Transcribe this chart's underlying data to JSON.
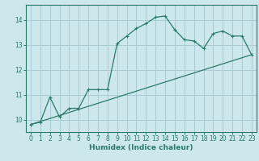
{
  "xlabel": "Humidex (Indice chaleur)",
  "background_color": "#cce8ec",
  "grid_color": "#aaccd4",
  "line_color": "#2a7a6a",
  "spine_color": "#2a7a6a",
  "xlim": [
    -0.5,
    23.5
  ],
  "ylim": [
    9.5,
    14.6
  ],
  "xticks": [
    0,
    1,
    2,
    3,
    4,
    5,
    6,
    7,
    8,
    9,
    10,
    11,
    12,
    13,
    14,
    15,
    16,
    17,
    18,
    19,
    20,
    21,
    22,
    23
  ],
  "yticks": [
    10,
    11,
    12,
    13,
    14
  ],
  "series1_x": [
    0,
    1,
    2,
    3,
    4,
    5,
    6,
    7,
    8,
    9,
    10,
    11,
    12,
    13,
    14,
    15,
    16,
    17,
    18,
    19,
    20,
    21,
    22,
    23
  ],
  "series1_y": [
    9.8,
    9.9,
    10.9,
    10.1,
    10.45,
    10.45,
    11.2,
    11.2,
    11.2,
    13.05,
    13.35,
    13.65,
    13.85,
    14.1,
    14.15,
    13.6,
    13.2,
    13.15,
    12.85,
    13.45,
    13.55,
    13.35,
    13.35,
    12.6
  ],
  "series2_x": [
    0,
    23
  ],
  "series2_y": [
    9.8,
    12.6
  ]
}
